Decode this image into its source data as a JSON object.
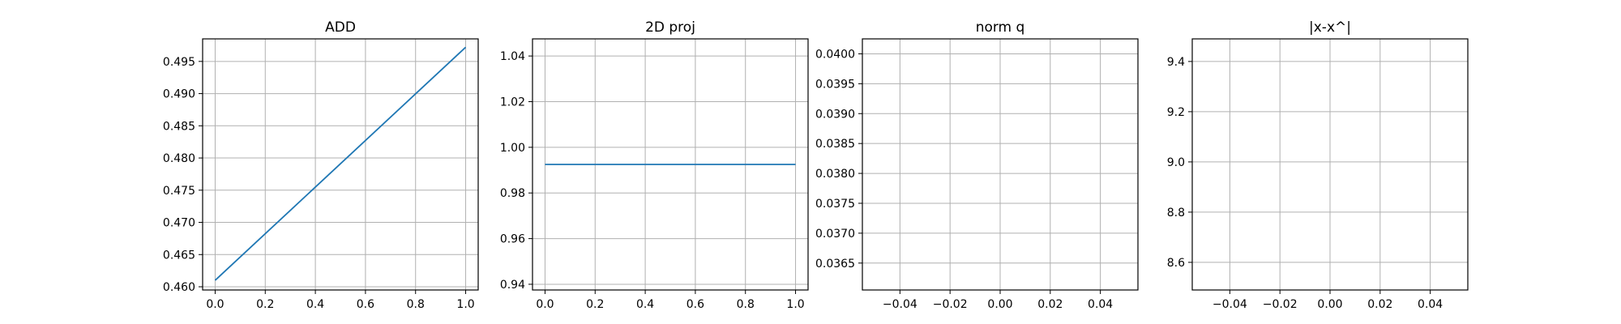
{
  "chart_data": [
    {
      "type": "line",
      "title": "ADD",
      "xlim": [
        -0.05,
        1.05
      ],
      "ylim": [
        0.4595,
        0.4985
      ],
      "xticks": [
        0.0,
        0.2,
        0.4,
        0.6,
        0.8,
        1.0
      ],
      "xtick_labels": [
        "0.0",
        "0.2",
        "0.4",
        "0.6",
        "0.8",
        "1.0"
      ],
      "yticks": [
        0.46,
        0.465,
        0.47,
        0.475,
        0.48,
        0.485,
        0.49,
        0.495
      ],
      "ytick_labels": [
        "0.460",
        "0.465",
        "0.470",
        "0.475",
        "0.480",
        "0.485",
        "0.490",
        "0.495"
      ],
      "grid": true,
      "series": [
        {
          "x": [
            0,
            1
          ],
          "values": [
            0.461,
            0.4972
          ],
          "color": "#1f77b4"
        }
      ]
    },
    {
      "type": "line",
      "title": "2D proj",
      "xlim": [
        -0.05,
        1.05
      ],
      "ylim": [
        0.9375,
        1.0475
      ],
      "xticks": [
        0.0,
        0.2,
        0.4,
        0.6,
        0.8,
        1.0
      ],
      "xtick_labels": [
        "0.0",
        "0.2",
        "0.4",
        "0.6",
        "0.8",
        "1.0"
      ],
      "yticks": [
        0.94,
        0.96,
        0.98,
        1.0,
        1.02,
        1.04
      ],
      "ytick_labels": [
        "0.94",
        "0.96",
        "0.98",
        "1.00",
        "1.02",
        "1.04"
      ],
      "grid": true,
      "series": [
        {
          "x": [
            0,
            1
          ],
          "values": [
            0.9925,
            0.9925
          ],
          "color": "#1f77b4"
        }
      ]
    },
    {
      "type": "line",
      "title": "norm q",
      "xlim": [
        -0.055,
        0.055
      ],
      "ylim": [
        0.03605,
        0.04025
      ],
      "xticks": [
        -0.04,
        -0.02,
        0.0,
        0.02,
        0.04
      ],
      "xtick_labels": [
        "−0.04",
        "−0.02",
        "0.00",
        "0.02",
        "0.04"
      ],
      "yticks": [
        0.0365,
        0.037,
        0.0375,
        0.038,
        0.0385,
        0.039,
        0.0395,
        0.04
      ],
      "ytick_labels": [
        "0.0365",
        "0.0370",
        "0.0375",
        "0.0380",
        "0.0385",
        "0.0390",
        "0.0395",
        "0.0400"
      ],
      "grid": true,
      "series": []
    },
    {
      "type": "line",
      "title": "|x-x^|",
      "xlim": [
        -0.055,
        0.055
      ],
      "ylim": [
        8.49,
        9.49
      ],
      "xticks": [
        -0.04,
        -0.02,
        0.0,
        0.02,
        0.04
      ],
      "xtick_labels": [
        "−0.04",
        "−0.02",
        "0.00",
        "0.02",
        "0.04"
      ],
      "yticks": [
        8.6,
        8.8,
        9.0,
        9.2,
        9.4
      ],
      "ytick_labels": [
        "8.6",
        "8.8",
        "9.0",
        "9.2",
        "9.4"
      ],
      "grid": true,
      "series": []
    }
  ]
}
